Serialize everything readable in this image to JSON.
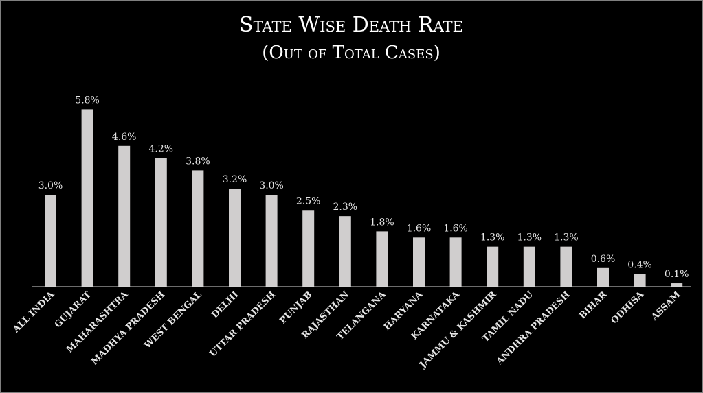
{
  "chart_data": {
    "type": "bar",
    "title": "State Wise Death Rate",
    "subtitle": "(Out of Total Cases)",
    "xlabel": "",
    "ylabel": "",
    "ylim": [
      0,
      6.5
    ],
    "grid": false,
    "legend": "none",
    "bar_color": "#d0cece",
    "categories": [
      "ALL INDIA",
      "GUJARAT",
      "MAHARASHTRA",
      "MADHYA PRADESH",
      "WEST BENGAL",
      "DELHI",
      "UTTAR PRADESH",
      "PUNJAB",
      "RAJASTHAN",
      "TELANGANA",
      "HARYANA",
      "KARNATAKA",
      "JAMMU & KASHMIR",
      "TAMIL NADU",
      "ANDHRA PRADESH",
      "BIHAR",
      "ODHISA",
      "ASSAM"
    ],
    "values": [
      3.0,
      5.8,
      4.6,
      4.2,
      3.8,
      3.2,
      3.0,
      2.5,
      2.3,
      1.8,
      1.6,
      1.6,
      1.3,
      1.3,
      1.3,
      0.6,
      0.4,
      0.1
    ],
    "data_labels": [
      "3.0%",
      "5.8%",
      "4.6%",
      "4.2%",
      "3.8%",
      "3.2%",
      "3.0%",
      "2.5%",
      "2.3%",
      "1.8%",
      "1.6%",
      "1.6%",
      "1.3%",
      "1.3%",
      "1.3%",
      "0.6%",
      "0.4%",
      "0.1%"
    ]
  }
}
